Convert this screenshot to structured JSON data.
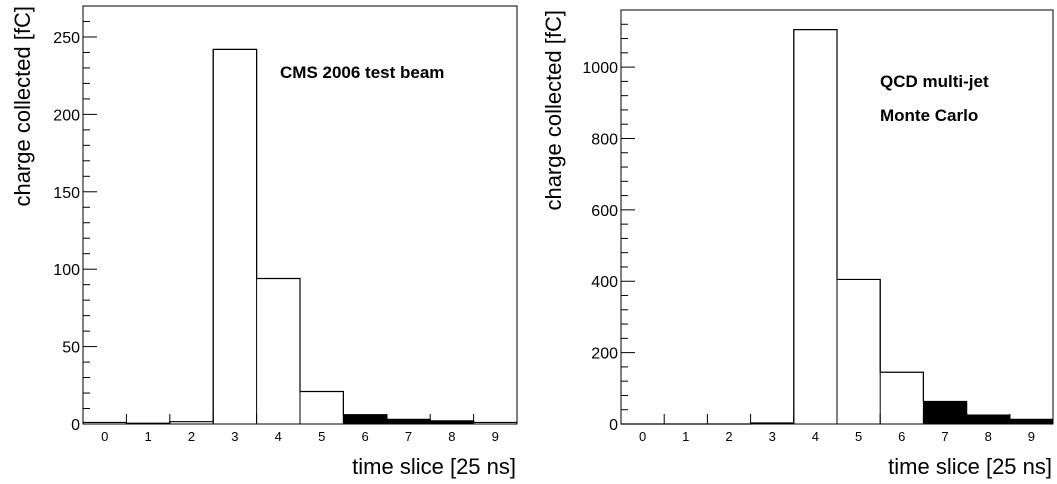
{
  "chart_data": [
    {
      "type": "bar",
      "categories": [
        "0",
        "1",
        "2",
        "3",
        "4",
        "5",
        "6",
        "7",
        "8",
        "9"
      ],
      "values": [
        1,
        0.5,
        1.5,
        242,
        94,
        21,
        6,
        3,
        2,
        1
      ],
      "filled": [
        false,
        false,
        false,
        false,
        false,
        false,
        true,
        true,
        true,
        false
      ],
      "xlabel": "time slice [25 ns]",
      "ylabel": "charge collected [fC]",
      "ylim": [
        0,
        270
      ],
      "yticks": [
        0,
        50,
        100,
        150,
        200,
        250
      ],
      "annotation": [
        "CMS 2006 test beam"
      ],
      "fill_color": "#000000",
      "grid": false
    },
    {
      "type": "bar",
      "categories": [
        "0",
        "1",
        "2",
        "3",
        "4",
        "5",
        "6",
        "7",
        "8",
        "9"
      ],
      "values": [
        0,
        0,
        0,
        3,
        1105,
        405,
        145,
        63,
        25,
        13
      ],
      "filled": [
        false,
        false,
        false,
        false,
        false,
        false,
        false,
        true,
        true,
        true
      ],
      "xlabel": "time slice [25 ns]",
      "ylabel": "charge collected [fC]",
      "ylim": [
        0,
        1160
      ],
      "yticks": [
        0,
        200,
        400,
        600,
        800,
        1000
      ],
      "annotation": [
        "QCD multi-jet",
        "Monte Carlo"
      ],
      "fill_color": "#000000",
      "grid": false
    }
  ]
}
